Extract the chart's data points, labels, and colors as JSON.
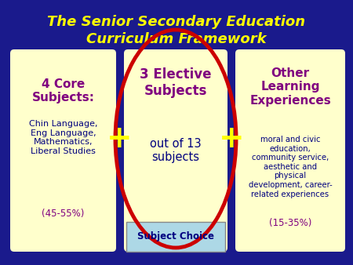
{
  "bg_color": "#1a1a8c",
  "title_line1": "The Senior Secondary Education",
  "title_line2": "Curriculum Framework",
  "title_color": "#ffff00",
  "title_fontsize": 13,
  "box_bg": "#ffffcc",
  "box1_title": "4 Core\nSubjects:",
  "box1_title_color": "#800080",
  "box1_body": "Chin Language,\nEng Language,\nMathematics,\nLiberal Studies",
  "box1_body_color": "#000080",
  "box1_footer": "(45-55%)",
  "box1_footer_color": "#800080",
  "box2_title": "3 Elective\nSubjects",
  "box2_title_color": "#800080",
  "box2_body": "out of 13\nsubjects",
  "box2_body_color": "#000080",
  "box2_footer": "Subject Choice",
  "box2_footer_color": "#000080",
  "box3_title": "Other\nLearning\nExperiences",
  "box3_title_color": "#800080",
  "box3_body": "moral and civic\neducation,\ncommunity service,\naesthetic and\nphysical\ndevelopment, career-\nrelated experiences",
  "box3_body_color": "#000080",
  "box3_footer": "(15-35%)",
  "box3_footer_color": "#800080",
  "ellipse_color": "#cc0000",
  "plus_color": "#ffff00",
  "subject_choice_bg": "#add8e6"
}
